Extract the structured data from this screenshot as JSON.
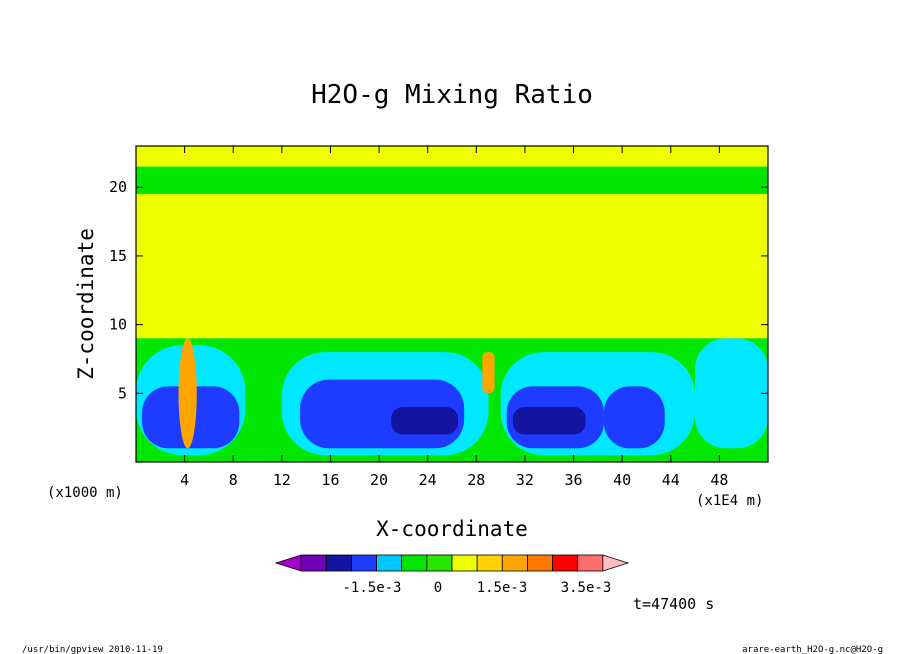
{
  "chart_data": {
    "type": "heatmap",
    "title": "H2O-g Mixing Ratio",
    "xlabel": "X-coordinate",
    "ylabel": "Z-coordinate",
    "x_unit": "(x1E4 m)",
    "y_unit": "(x1000 m)",
    "xlim": [
      0,
      52
    ],
    "ylim": [
      0,
      23
    ],
    "x_ticks": [
      4,
      8,
      12,
      16,
      20,
      24,
      28,
      32,
      36,
      40,
      44,
      48
    ],
    "y_ticks": [
      5,
      10,
      15,
      20
    ],
    "colorbar": {
      "colors": [
        "#a400c8",
        "#7000b4",
        "#1414a0",
        "#1e3cff",
        "#00c8ff",
        "#00e600",
        "#28e600",
        "#eeff00",
        "#ffd200",
        "#ffa500",
        "#ff7800",
        "#ff0000",
        "#ff6e6e",
        "#ffbebe"
      ],
      "labels": [
        "-1.5e-3",
        "0",
        "1.5e-3",
        "3.5e-3"
      ]
    },
    "time_label": "t=47400 s",
    "regions": [
      {
        "level": "yellow",
        "shape": "background",
        "x": [
          0,
          52
        ],
        "z": [
          0,
          23
        ]
      },
      {
        "level": "green",
        "shape": "band",
        "x": [
          0,
          52
        ],
        "z": [
          19.5,
          21.5
        ]
      },
      {
        "level": "green",
        "shape": "lower-layer",
        "x": [
          0,
          52
        ],
        "z": [
          0,
          9
        ]
      },
      {
        "level": "cyan",
        "shape": "blob",
        "x": [
          0,
          9
        ],
        "z": [
          0.5,
          8.5
        ]
      },
      {
        "level": "blue",
        "shape": "blob",
        "x": [
          0.5,
          8.5
        ],
        "z": [
          1,
          5.5
        ]
      },
      {
        "level": "cyan",
        "shape": "blob",
        "x": [
          12,
          29
        ],
        "z": [
          0.5,
          8
        ]
      },
      {
        "level": "blue",
        "shape": "blob",
        "x": [
          13.5,
          27
        ],
        "z": [
          1,
          6
        ]
      },
      {
        "level": "navy",
        "shape": "blob",
        "x": [
          21,
          26.5
        ],
        "z": [
          2,
          4
        ]
      },
      {
        "level": "cyan",
        "shape": "blob",
        "x": [
          30,
          46
        ],
        "z": [
          0.5,
          8
        ]
      },
      {
        "level": "blue",
        "shape": "blob",
        "x": [
          30.5,
          38.5
        ],
        "z": [
          1,
          5.5
        ]
      },
      {
        "level": "navy",
        "shape": "blob",
        "x": [
          31,
          37
        ],
        "z": [
          2,
          4
        ]
      },
      {
        "level": "blue",
        "shape": "blob",
        "x": [
          38.5,
          43.5
        ],
        "z": [
          1,
          5.5
        ]
      },
      {
        "level": "cyan",
        "shape": "blob",
        "x": [
          46,
          52
        ],
        "z": [
          1,
          9
        ]
      },
      {
        "level": "orange",
        "shape": "plume",
        "x": [
          3.5,
          5
        ],
        "z": [
          1,
          9
        ]
      },
      {
        "level": "orange",
        "shape": "blob",
        "x": [
          28.5,
          29.5
        ],
        "z": [
          5,
          8
        ]
      }
    ]
  },
  "footer": {
    "left": "/usr/bin/gpview   2010-11-19",
    "right": "arare-earth_H2O-g.nc@H2O-g"
  }
}
